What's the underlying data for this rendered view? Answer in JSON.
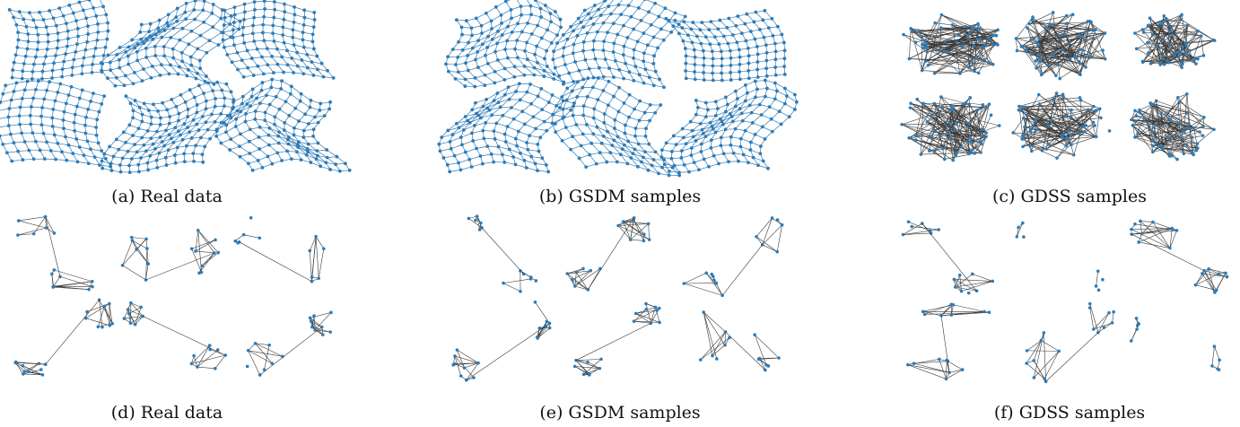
{
  "captions": {
    "a": "(a) Real data",
    "b": "(b) GSDM samples",
    "c": "(c) GDSS samples",
    "d": "(d) Real data",
    "e": "(e) GSDM samples",
    "f": "(f) GDSS samples"
  },
  "colors": {
    "node": "#2f7bb5",
    "edge": "#3a3a3a"
  },
  "node_icon": "dot-node-icon"
}
